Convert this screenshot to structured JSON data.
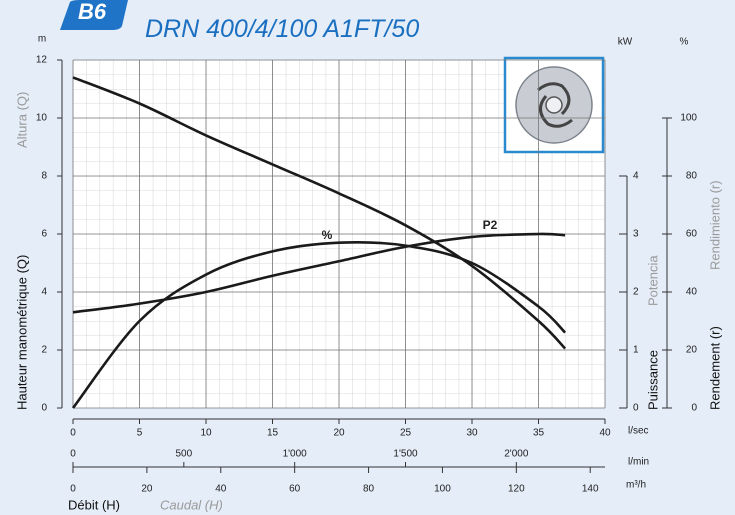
{
  "badge": "B6",
  "chart_data": {
    "type": "line",
    "title": "DRN 400/4/100 A1FT/50",
    "x": [
      0,
      5,
      10,
      15,
      20,
      25,
      30,
      35,
      37
    ],
    "xlim": [
      0,
      40
    ],
    "xticks": [
      0,
      5,
      10,
      15,
      20,
      25,
      30,
      35,
      40
    ],
    "x_unit": "l/sec",
    "x2": {
      "unit": "l/min",
      "lim": [
        0,
        2400
      ],
      "ticks": [
        0,
        500,
        {
          "value": 1000,
          "label": "1'000"
        },
        {
          "value": 1500,
          "label": "1'500"
        },
        {
          "value": 2000,
          "label": "2'000"
        }
      ]
    },
    "x3": {
      "unit": "m³/h",
      "lim": [
        0,
        144
      ],
      "ticks": [
        0,
        20,
        40,
        60,
        80,
        100,
        120,
        140
      ]
    },
    "x_label": "Débit (H)",
    "x_label_alt": "Caudal (H)",
    "ylim": [
      0,
      12
    ],
    "yticks": [
      0,
      2,
      4,
      6,
      8,
      10,
      12
    ],
    "y_unit": "m",
    "y_label": "Hauteur manométrique (Q)",
    "y_label_alt": "Altura (Q)",
    "y2lim": [
      0,
      6
    ],
    "y2ticks": [
      0,
      1,
      2,
      3,
      4
    ],
    "y2_unit": "kW",
    "y2_label": "Puissance",
    "y2_label_alt": "Potencia",
    "y3lim": [
      0,
      120
    ],
    "y3ticks": [
      0,
      20,
      40,
      60,
      80,
      100
    ],
    "y3_unit": "%",
    "y3_label": "Rendement (r)",
    "y3_label_alt": "Rendimiento (r)",
    "grid": true,
    "series": [
      {
        "color": "#1a1a1a",
        "values": [
          11.4,
          10.5,
          9.4,
          8.4,
          7.4,
          6.3,
          4.9,
          3.0,
          2.05
        ]
      },
      {
        "name": "P2",
        "axis": "y2",
        "color": "#1a1a1a",
        "values": [
          1.65,
          1.8,
          2.0,
          2.28,
          2.53,
          2.78,
          2.95,
          3.0,
          2.98
        ]
      },
      {
        "name": "%",
        "axis": "y3",
        "color": "#1a1a1a",
        "values": [
          0,
          30,
          46,
          54,
          57,
          56,
          50,
          35,
          26
        ]
      }
    ]
  }
}
